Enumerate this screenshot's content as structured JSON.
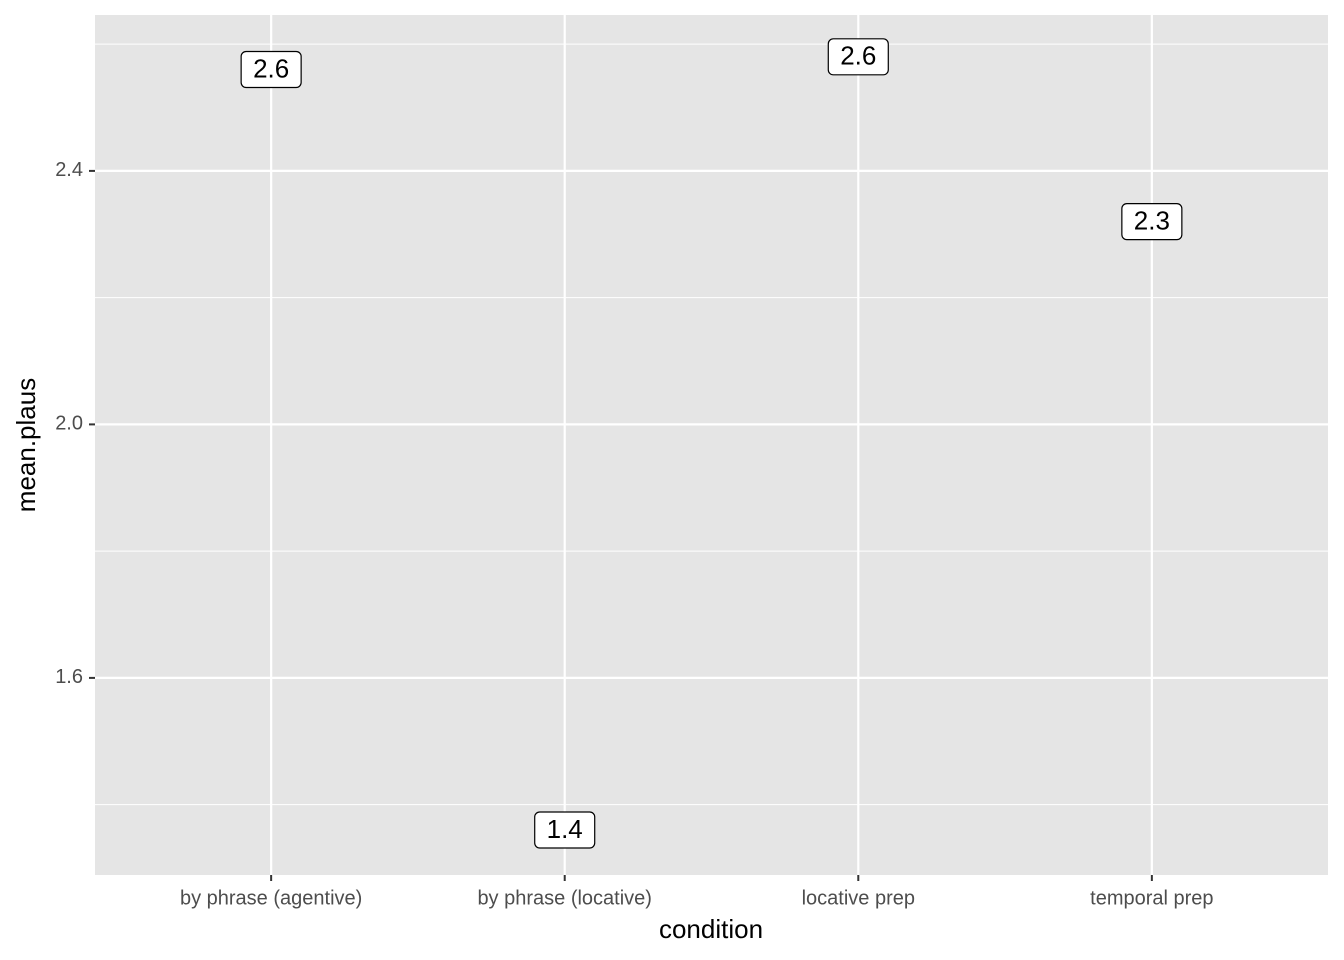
{
  "chart_data": {
    "type": "label",
    "x_label": "condition",
    "y_label": "mean.plaus",
    "categories": [
      "by phrase (agentive)",
      "by phrase (locative)",
      "locative prep",
      "temporal prep"
    ],
    "values": [
      2.56,
      1.36,
      2.58,
      2.32
    ],
    "value_labels": [
      "2.6",
      "1.4",
      "2.6",
      "2.3"
    ],
    "ylim": [
      1.289,
      2.646
    ],
    "yticks": [
      {
        "value": 1.6,
        "label": "1.6"
      },
      {
        "value": 2.0,
        "label": "2.0"
      },
      {
        "value": 2.4,
        "label": "2.4"
      }
    ],
    "y_minor_ticks": [
      1.4,
      1.8,
      2.2,
      2.6
    ],
    "grid": true,
    "panel_color": "#e5e5e5"
  }
}
